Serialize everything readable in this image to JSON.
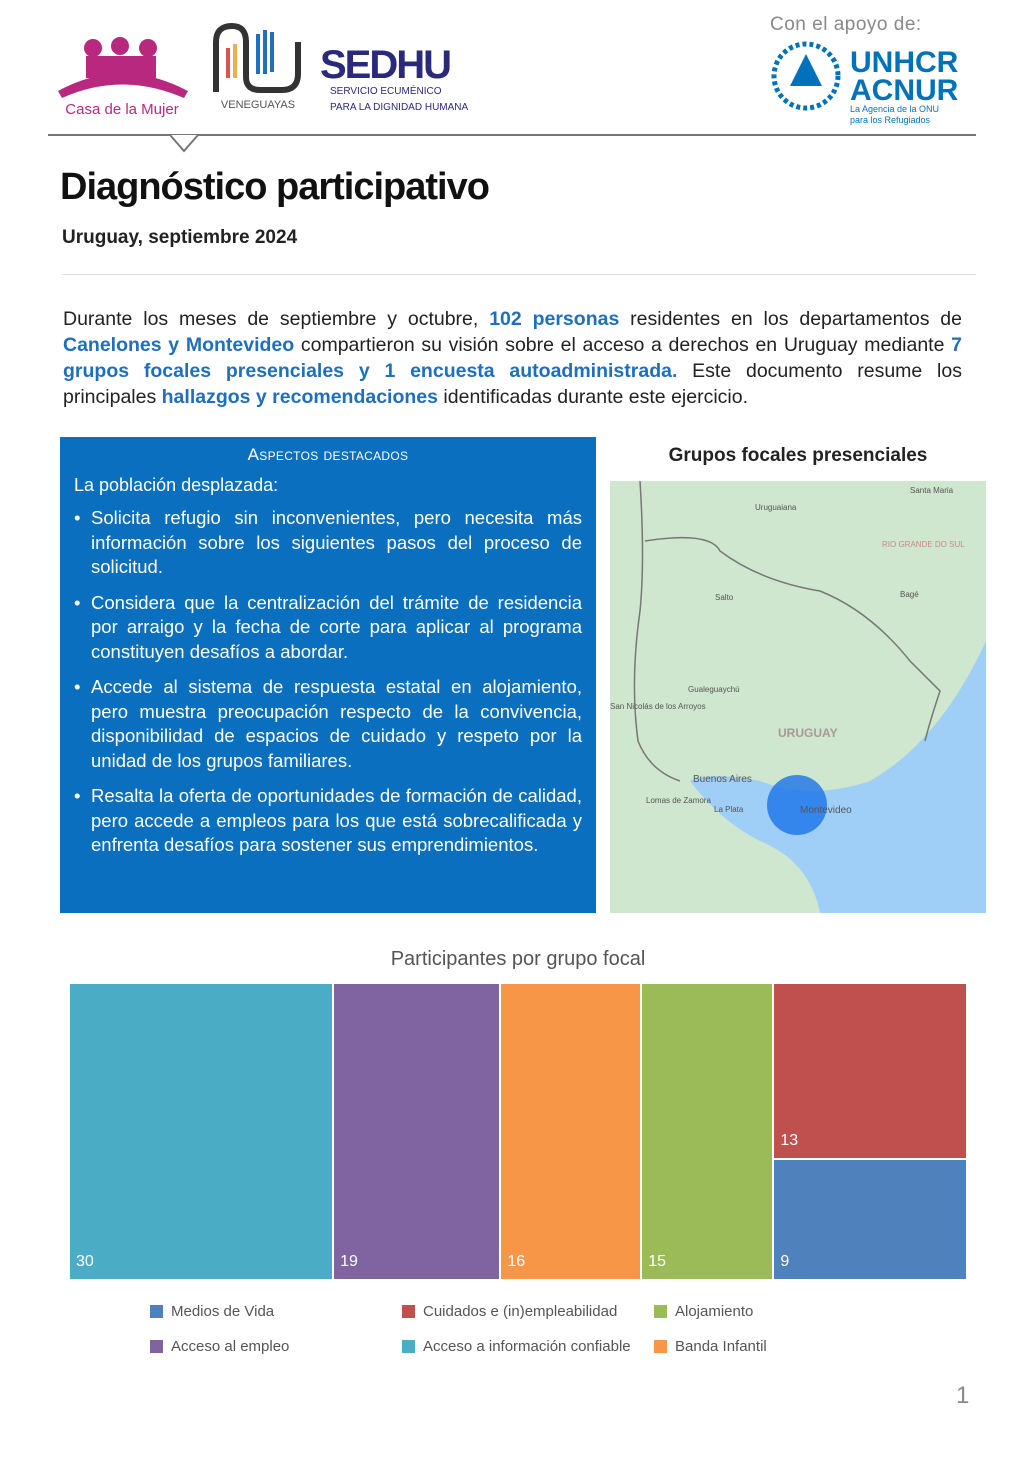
{
  "header": {
    "logos": [
      "Casa de la Mujer",
      "MANOS VENEGUAYAS",
      "SEDHU SERVICIO ECUMÉNICO PARA LA DIGNIDAD HUMANA",
      "UNHCR ACNUR La Agencia de la ONU para los Refugiados"
    ],
    "support_label": "Con el apoyo de:"
  },
  "title": "Diagnóstico participativo",
  "subtitle": "Uruguay, septiembre 2024",
  "intro": {
    "p1": "Durante los meses de septiembre y octubre, ",
    "h1": "102 personas",
    "p2": " residentes en los departamentos de ",
    "h2": "Canelones y Montevideo",
    "p3": " compartieron su visión sobre el acceso a derechos en Uruguay mediante ",
    "h3": "7 grupos focales presenciales y 1 encuesta autoadministrada.",
    "p4": " Este documento resume los principales ",
    "h4": "hallazgos y recomendaciones",
    "p5": " identificadas durante este ejercicio."
  },
  "highlights": {
    "heading": "Aspectos destacados",
    "lead": "La población desplazada:",
    "items": [
      "Solicita refugio sin inconvenientes, pero necesita más información sobre los siguientes pasos del proceso de solicitud.",
      "Considera que la centralización del trámite de residencia por arraigo y la fecha de corte para aplicar al programa constituyen desafíos a abordar.",
      "Accede al sistema de respuesta estatal en alojamiento, pero muestra preocupación respecto de la convivencia, disponibilidad de espacios de cuidado y respeto por la unidad de los grupos familiares.",
      "Resalta la oferta de oportunidades de formación de calidad, pero accede a empleos para los que está sobrecalificada y enfrenta desafíos para sostener sus emprendimientos."
    ]
  },
  "map": {
    "title": "Grupos focales presenciales",
    "labels": [
      "Uruguaiana",
      "Santa Maria",
      "RIO GRANDE DO SUL",
      "Salto",
      "Bagé",
      "Gualeguaychú",
      "San Nicolás de los Arroyos",
      "URUGUAY",
      "Buenos Aires",
      "Lomas de Zamora",
      "La Plata",
      "Montevideo"
    ]
  },
  "chart_data": {
    "type": "treemap",
    "title": "Participantes por grupo focal",
    "items": [
      {
        "name": "Acceso a información confiable",
        "value": 30,
        "color": "#4bacc6"
      },
      {
        "name": "Acceso al empleo",
        "value": 19,
        "color": "#8064a2"
      },
      {
        "name": "Banda Infantil",
        "value": 16,
        "color": "#f79646"
      },
      {
        "name": "Alojamiento",
        "value": 15,
        "color": "#9bbb59"
      },
      {
        "name": "Cuidados e (in)empleabilidad",
        "value": 13,
        "color": "#c0504d"
      },
      {
        "name": "Medios de Vida",
        "value": 9,
        "color": "#4f81bd"
      }
    ],
    "legend": [
      "Medios de Vida",
      "Cuidados e (in)empleabilidad",
      "Alojamiento",
      "Acceso al empleo",
      "Acceso a información confiable",
      "Banda Infantil"
    ],
    "legend_position": "bottom"
  },
  "page_number": "1"
}
